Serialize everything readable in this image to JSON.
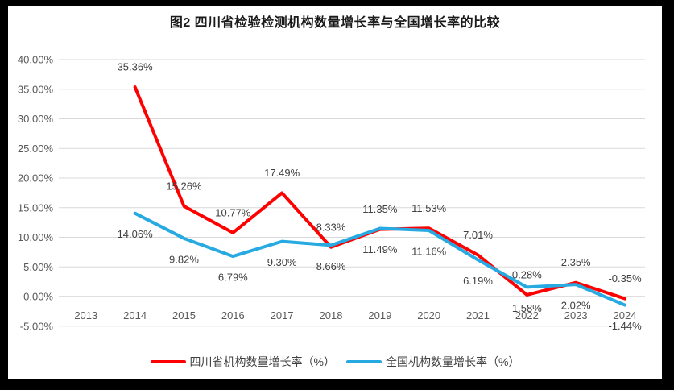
{
  "title": "图2  四川省检验检测机构数量增长率与全国增长率的比较",
  "palette": {
    "frame": "#000000",
    "background": "#FFFFFF",
    "gridline": "#D9D9D9",
    "axis_line": "#BFBFBF",
    "tick_label": "#595959",
    "data_label": "#404040",
    "title_color": "#1A1A1A",
    "legend_text": "#404040"
  },
  "chart_data": {
    "type": "line",
    "categories": [
      "2013",
      "2014",
      "2015",
      "2016",
      "2017",
      "2018",
      "2019",
      "2020",
      "2021",
      "2022",
      "2023",
      "2024"
    ],
    "series": [
      {
        "name": "四川省机构数量增长率（%）",
        "color": "#FF0000",
        "label_position": "above",
        "values": [
          null,
          35.36,
          15.26,
          10.77,
          17.49,
          8.33,
          11.35,
          11.53,
          7.01,
          0.28,
          2.35,
          -0.35
        ]
      },
      {
        "name": "全国机构数量增长率（%）",
        "color": "#27AAE1",
        "label_position": "below",
        "values": [
          null,
          14.06,
          9.82,
          6.79,
          9.3,
          8.66,
          11.49,
          11.16,
          6.19,
          1.58,
          2.02,
          -1.44
        ]
      }
    ],
    "ylim": [
      -5,
      40
    ],
    "ytick_step": 5,
    "ytick_format": "0.00%",
    "grid": true,
    "legend_position": "bottom",
    "xlabel": "",
    "ylabel": ""
  }
}
